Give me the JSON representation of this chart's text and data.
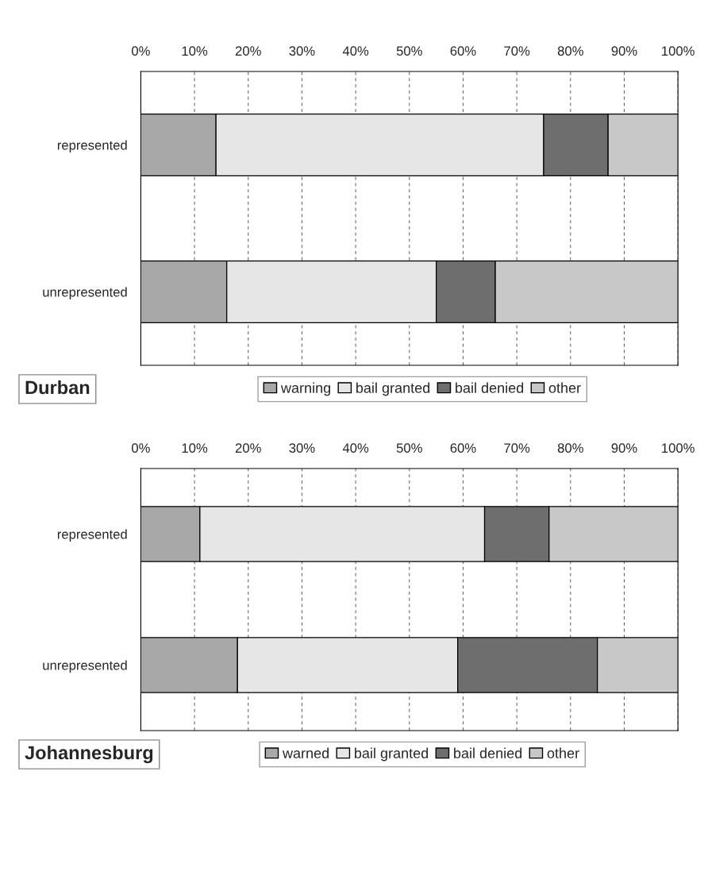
{
  "chart_data": [
    {
      "type": "bar",
      "title": "Durban",
      "orientation": "horizontal",
      "stacked": true,
      "categories": [
        "represented",
        "unrepresented"
      ],
      "series": [
        {
          "name": "warning",
          "color": "#a8a8a8",
          "values": [
            14,
            16
          ]
        },
        {
          "name": "bail granted",
          "color": "#e6e6e6",
          "values": [
            61,
            39
          ]
        },
        {
          "name": "bail denied",
          "color": "#6e6e6e",
          "values": [
            12,
            11
          ]
        },
        {
          "name": "other",
          "color": "#c8c8c8",
          "values": [
            13,
            34
          ]
        }
      ],
      "xlim": [
        0,
        100
      ],
      "xticks": [
        {
          "value": 0,
          "label": "0%"
        },
        {
          "value": 10,
          "label": "10%"
        },
        {
          "value": 20,
          "label": "20%"
        },
        {
          "value": 30,
          "label": "30%"
        },
        {
          "value": 40,
          "label": "40%"
        },
        {
          "value": 50,
          "label": "50%"
        },
        {
          "value": 60,
          "label": "60%"
        },
        {
          "value": 70,
          "label": "70%"
        },
        {
          "value": 80,
          "label": "80%"
        },
        {
          "value": 90,
          "label": "90%"
        },
        {
          "value": 100,
          "label": "100%"
        }
      ],
      "grid": "x",
      "legend": "bottom"
    },
    {
      "type": "bar",
      "title": "Johannesburg",
      "orientation": "horizontal",
      "stacked": true,
      "categories": [
        "represented",
        "unrepresented"
      ],
      "series": [
        {
          "name": "warned",
          "color": "#a8a8a8",
          "values": [
            11,
            18
          ]
        },
        {
          "name": "bail granted",
          "color": "#e6e6e6",
          "values": [
            53,
            41
          ]
        },
        {
          "name": "bail denied",
          "color": "#6e6e6e",
          "values": [
            12,
            26
          ]
        },
        {
          "name": "other",
          "color": "#c8c8c8",
          "values": [
            24,
            15
          ]
        }
      ],
      "xlim": [
        0,
        100
      ],
      "xticks": [
        {
          "value": 0,
          "label": "0%"
        },
        {
          "value": 10,
          "label": "10%"
        },
        {
          "value": 20,
          "label": "20%"
        },
        {
          "value": 30,
          "label": "30%"
        },
        {
          "value": 40,
          "label": "40%"
        },
        {
          "value": 50,
          "label": "50%"
        },
        {
          "value": 60,
          "label": "60%"
        },
        {
          "value": 70,
          "label": "70%"
        },
        {
          "value": 80,
          "label": "80%"
        },
        {
          "value": 90,
          "label": "90%"
        },
        {
          "value": 100,
          "label": "100%"
        }
      ],
      "grid": "x",
      "legend": "bottom"
    }
  ]
}
